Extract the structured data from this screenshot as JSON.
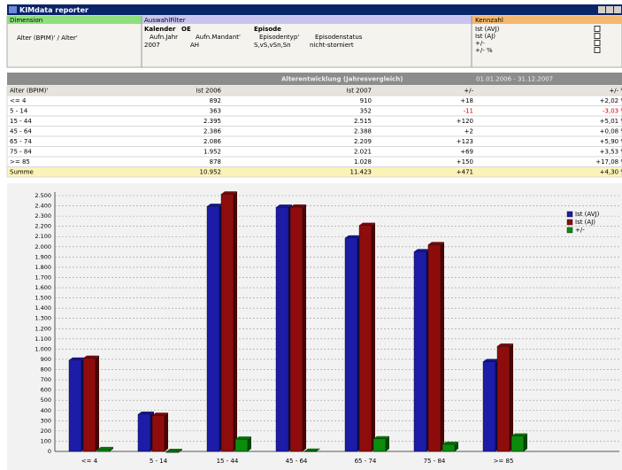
{
  "window": {
    "title": "KIMdata reporter"
  },
  "panels": {
    "dimension": {
      "title": "Dimension",
      "item": "Alter (BPIM)' / Alter'"
    },
    "filter": {
      "title": "AuswahlFilter",
      "groups": [
        "Kalender",
        "OE",
        "Episode"
      ],
      "fields": [
        "Aufn.Jahr",
        "Aufn.Mandant'",
        "Episodentyp'",
        "Episodenstatus"
      ],
      "values": [
        "2007",
        "AH",
        "S,vS,vSn,Sn",
        "nicht-storniert"
      ]
    },
    "kennzahl": {
      "title": "Kennzahl",
      "items": [
        "Ist (AVJ)",
        "Ist (AJ)",
        "+/-",
        "+/- %"
      ]
    }
  },
  "toolbar": {
    "title": "Alterentwicklung (Jahresvergleich)",
    "period": "01.01.2006 - 31.12.2007"
  },
  "table": {
    "header": [
      "Alter (BPIM)'",
      "Ist 2006",
      "Ist 2007",
      "+/-",
      "+/- %"
    ],
    "rows": [
      [
        "<= 4",
        "892",
        "910",
        "+18",
        "+2,02 %"
      ],
      [
        "5 - 14",
        "363",
        "352",
        "-11",
        "-3,03 %"
      ],
      [
        "15 - 44",
        "2.395",
        "2.515",
        "+120",
        "+5,01 %"
      ],
      [
        "45 - 64",
        "2.386",
        "2.388",
        "+2",
        "+0,08 %"
      ],
      [
        "65 - 74",
        "2.086",
        "2.209",
        "+123",
        "+5,90 %"
      ],
      [
        "75 - 84",
        "1.952",
        "2.021",
        "+69",
        "+3,53 %"
      ],
      [
        ">= 85",
        "878",
        "1.028",
        "+150",
        "+17,08 %"
      ]
    ],
    "total": [
      "Summe",
      "10.952",
      "11.423",
      "+471",
      "+4,30 %"
    ]
  },
  "chart": {
    "type": "bar",
    "categories": [
      "<= 4",
      "5 - 14",
      "15 - 44",
      "45 - 64",
      "65 - 74",
      "75 - 84",
      ">= 85"
    ],
    "series": [
      {
        "name": "Ist (AVJ)",
        "color": "#1c1ca8",
        "values": [
          892,
          363,
          2395,
          2386,
          2086,
          1952,
          878
        ]
      },
      {
        "name": "Ist (AJ)",
        "color": "#8e0c0c",
        "values": [
          910,
          352,
          2515,
          2388,
          2209,
          2021,
          1028
        ]
      },
      {
        "name": "+/-",
        "color": "#0c8c0c",
        "values": [
          18,
          -11,
          120,
          2,
          123,
          69,
          150
        ]
      }
    ],
    "ylim": [
      0,
      2500
    ],
    "yticks": [
      0,
      100,
      200,
      300,
      400,
      500,
      600,
      700,
      800,
      900,
      {
        "value": 1000,
        "label": "1.000"
      },
      {
        "value": 1100,
        "label": "1.100"
      },
      {
        "value": 1200,
        "label": "1.200"
      },
      {
        "value": 1300,
        "label": "1.300"
      },
      {
        "value": 1400,
        "label": "1.400"
      },
      {
        "value": 1500,
        "label": "1.500"
      },
      {
        "value": 1600,
        "label": "1.600"
      },
      {
        "value": 1700,
        "label": "1.700"
      },
      {
        "value": 1800,
        "label": "1.800"
      },
      {
        "value": 1900,
        "label": "1.900"
      },
      {
        "value": 2000,
        "label": "2.000"
      },
      {
        "value": 2100,
        "label": "2.100"
      },
      {
        "value": 2200,
        "label": "2.200"
      },
      {
        "value": 2300,
        "label": "2.300"
      },
      {
        "value": 2400,
        "label": "2.400"
      },
      {
        "value": 2500,
        "label": "2.500"
      }
    ],
    "grid": true,
    "legend": "top-right"
  }
}
